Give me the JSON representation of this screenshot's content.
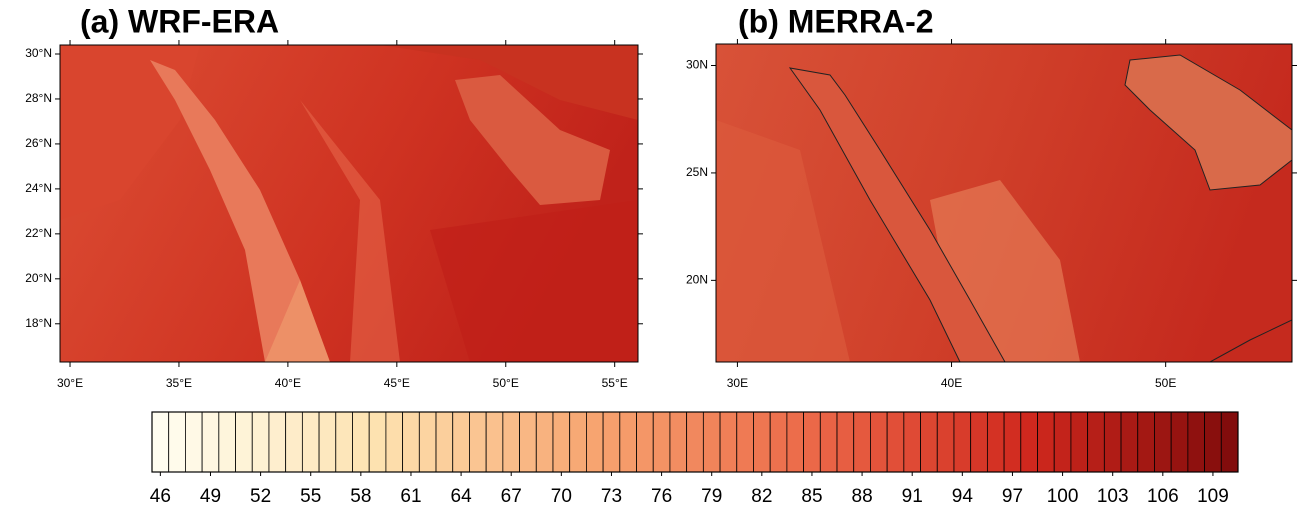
{
  "panels": [
    {
      "title": "(a) WRF-ERA",
      "xlim": [
        29.54,
        56.07
      ],
      "ylim": [
        16.3,
        30.4
      ],
      "xticks": [
        {
          "value": 30,
          "label": "30°E"
        },
        {
          "value": 35,
          "label": "35°E"
        },
        {
          "value": 40,
          "label": "40°E"
        },
        {
          "value": 45,
          "label": "45°E"
        },
        {
          "value": 50,
          "label": "50°E"
        },
        {
          "value": 55,
          "label": "55°E"
        }
      ],
      "yticks": [
        {
          "value": 18,
          "label": "18°N"
        },
        {
          "value": 20,
          "label": "20°N"
        },
        {
          "value": 22,
          "label": "22°N"
        },
        {
          "value": 24,
          "label": "24°N"
        },
        {
          "value": 26,
          "label": "26°N"
        },
        {
          "value": 28,
          "label": "28°N"
        },
        {
          "value": 30,
          "label": "30°N"
        }
      ]
    },
    {
      "title": "(b) MERRA-2",
      "xlim": [
        29.0,
        55.9
      ],
      "ylim": [
        16.2,
        31.0
      ],
      "xticks": [
        {
          "value": 30,
          "label": "30E"
        },
        {
          "value": 40,
          "label": "40E"
        },
        {
          "value": 50,
          "label": "50E"
        }
      ],
      "yticks": [
        {
          "value": 20,
          "label": "20N"
        },
        {
          "value": 25,
          "label": "25N"
        },
        {
          "value": 30,
          "label": "30N"
        }
      ]
    }
  ],
  "colorbar": {
    "lim": [
      45.5,
      110.5
    ],
    "ticks": [
      46,
      49,
      52,
      55,
      58,
      61,
      64,
      67,
      70,
      73,
      76,
      79,
      82,
      85,
      88,
      91,
      94,
      97,
      100,
      103,
      106,
      109
    ],
    "colors": [
      "#fffdf0",
      "#fde2b0",
      "#f7a470",
      "#eb6848",
      "#d0281e",
      "#7c0a0a"
    ]
  }
}
